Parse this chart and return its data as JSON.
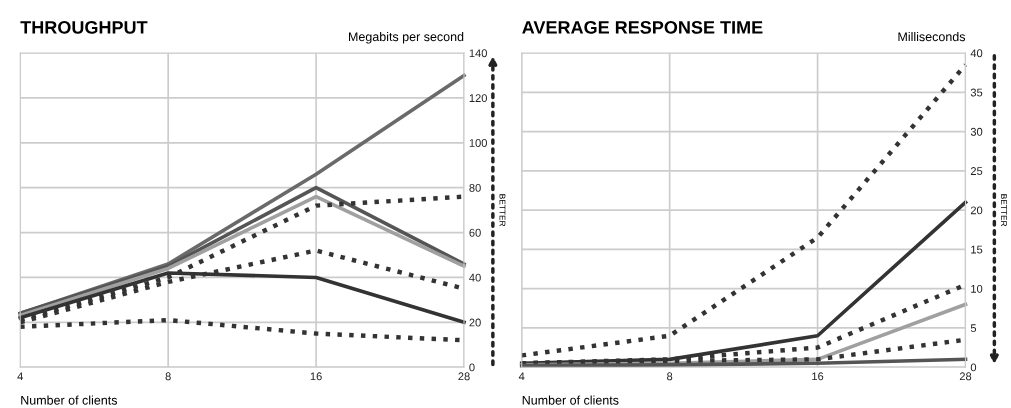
{
  "chart_data": [
    {
      "type": "line",
      "title": "THROUGHPUT",
      "ylabel": "Megabits per second",
      "xlabel": "Number of clients",
      "categories": [
        "4",
        "8",
        "16",
        "28"
      ],
      "ylim": [
        0,
        140
      ],
      "yticks": [
        0,
        20,
        40,
        60,
        80,
        100,
        120,
        140
      ],
      "grid": true,
      "annotations": [
        "BETTER"
      ],
      "series": [
        {
          "color": "#6a6a6a",
          "line_style": "solid",
          "values": [
            24,
            46,
            86,
            130
          ]
        },
        {
          "color": "#555555",
          "line_style": "solid",
          "values": [
            24,
            45,
            80,
            46
          ]
        },
        {
          "color": "#a0a0a0",
          "line_style": "solid",
          "values": [
            23,
            44,
            76,
            45
          ]
        },
        {
          "color": "#333333",
          "line_style": "solid",
          "values": [
            22,
            42,
            40,
            20
          ]
        },
        {
          "color": "#333333",
          "line_style": "dotted",
          "values": [
            21,
            40,
            72,
            76
          ]
        },
        {
          "color": "#333333",
          "line_style": "dotted",
          "values": [
            20,
            38,
            52,
            35
          ]
        },
        {
          "color": "#333333",
          "line_style": "dotted",
          "values": [
            18,
            21,
            15,
            12
          ]
        }
      ]
    },
    {
      "type": "line",
      "title": "AVERAGE RESPONSE TIME",
      "ylabel": "Milliseconds",
      "xlabel": "Number of clients",
      "categories": [
        "4",
        "8",
        "16",
        "28"
      ],
      "ylim": [
        0,
        40
      ],
      "yticks": [
        0,
        5,
        10,
        15,
        20,
        25,
        30,
        35,
        40
      ],
      "grid": true,
      "annotations": [
        "BETTER"
      ],
      "series": [
        {
          "color": "#333333",
          "line_style": "dotted",
          "values": [
            1.5,
            4,
            16.5,
            38.5
          ]
        },
        {
          "color": "#333333",
          "line_style": "solid",
          "values": [
            0.5,
            1,
            4,
            21
          ]
        },
        {
          "color": "#333333",
          "line_style": "dotted",
          "values": [
            0.5,
            1,
            2.5,
            10.5
          ]
        },
        {
          "color": "#a0a0a0",
          "line_style": "solid",
          "values": [
            0.3,
            0.5,
            1,
            8
          ]
        },
        {
          "color": "#333333",
          "line_style": "dotted",
          "values": [
            0.5,
            0.8,
            1,
            3.5
          ]
        },
        {
          "color": "#555555",
          "line_style": "solid",
          "values": [
            0.2,
            0.3,
            0.5,
            1
          ]
        }
      ]
    }
  ]
}
